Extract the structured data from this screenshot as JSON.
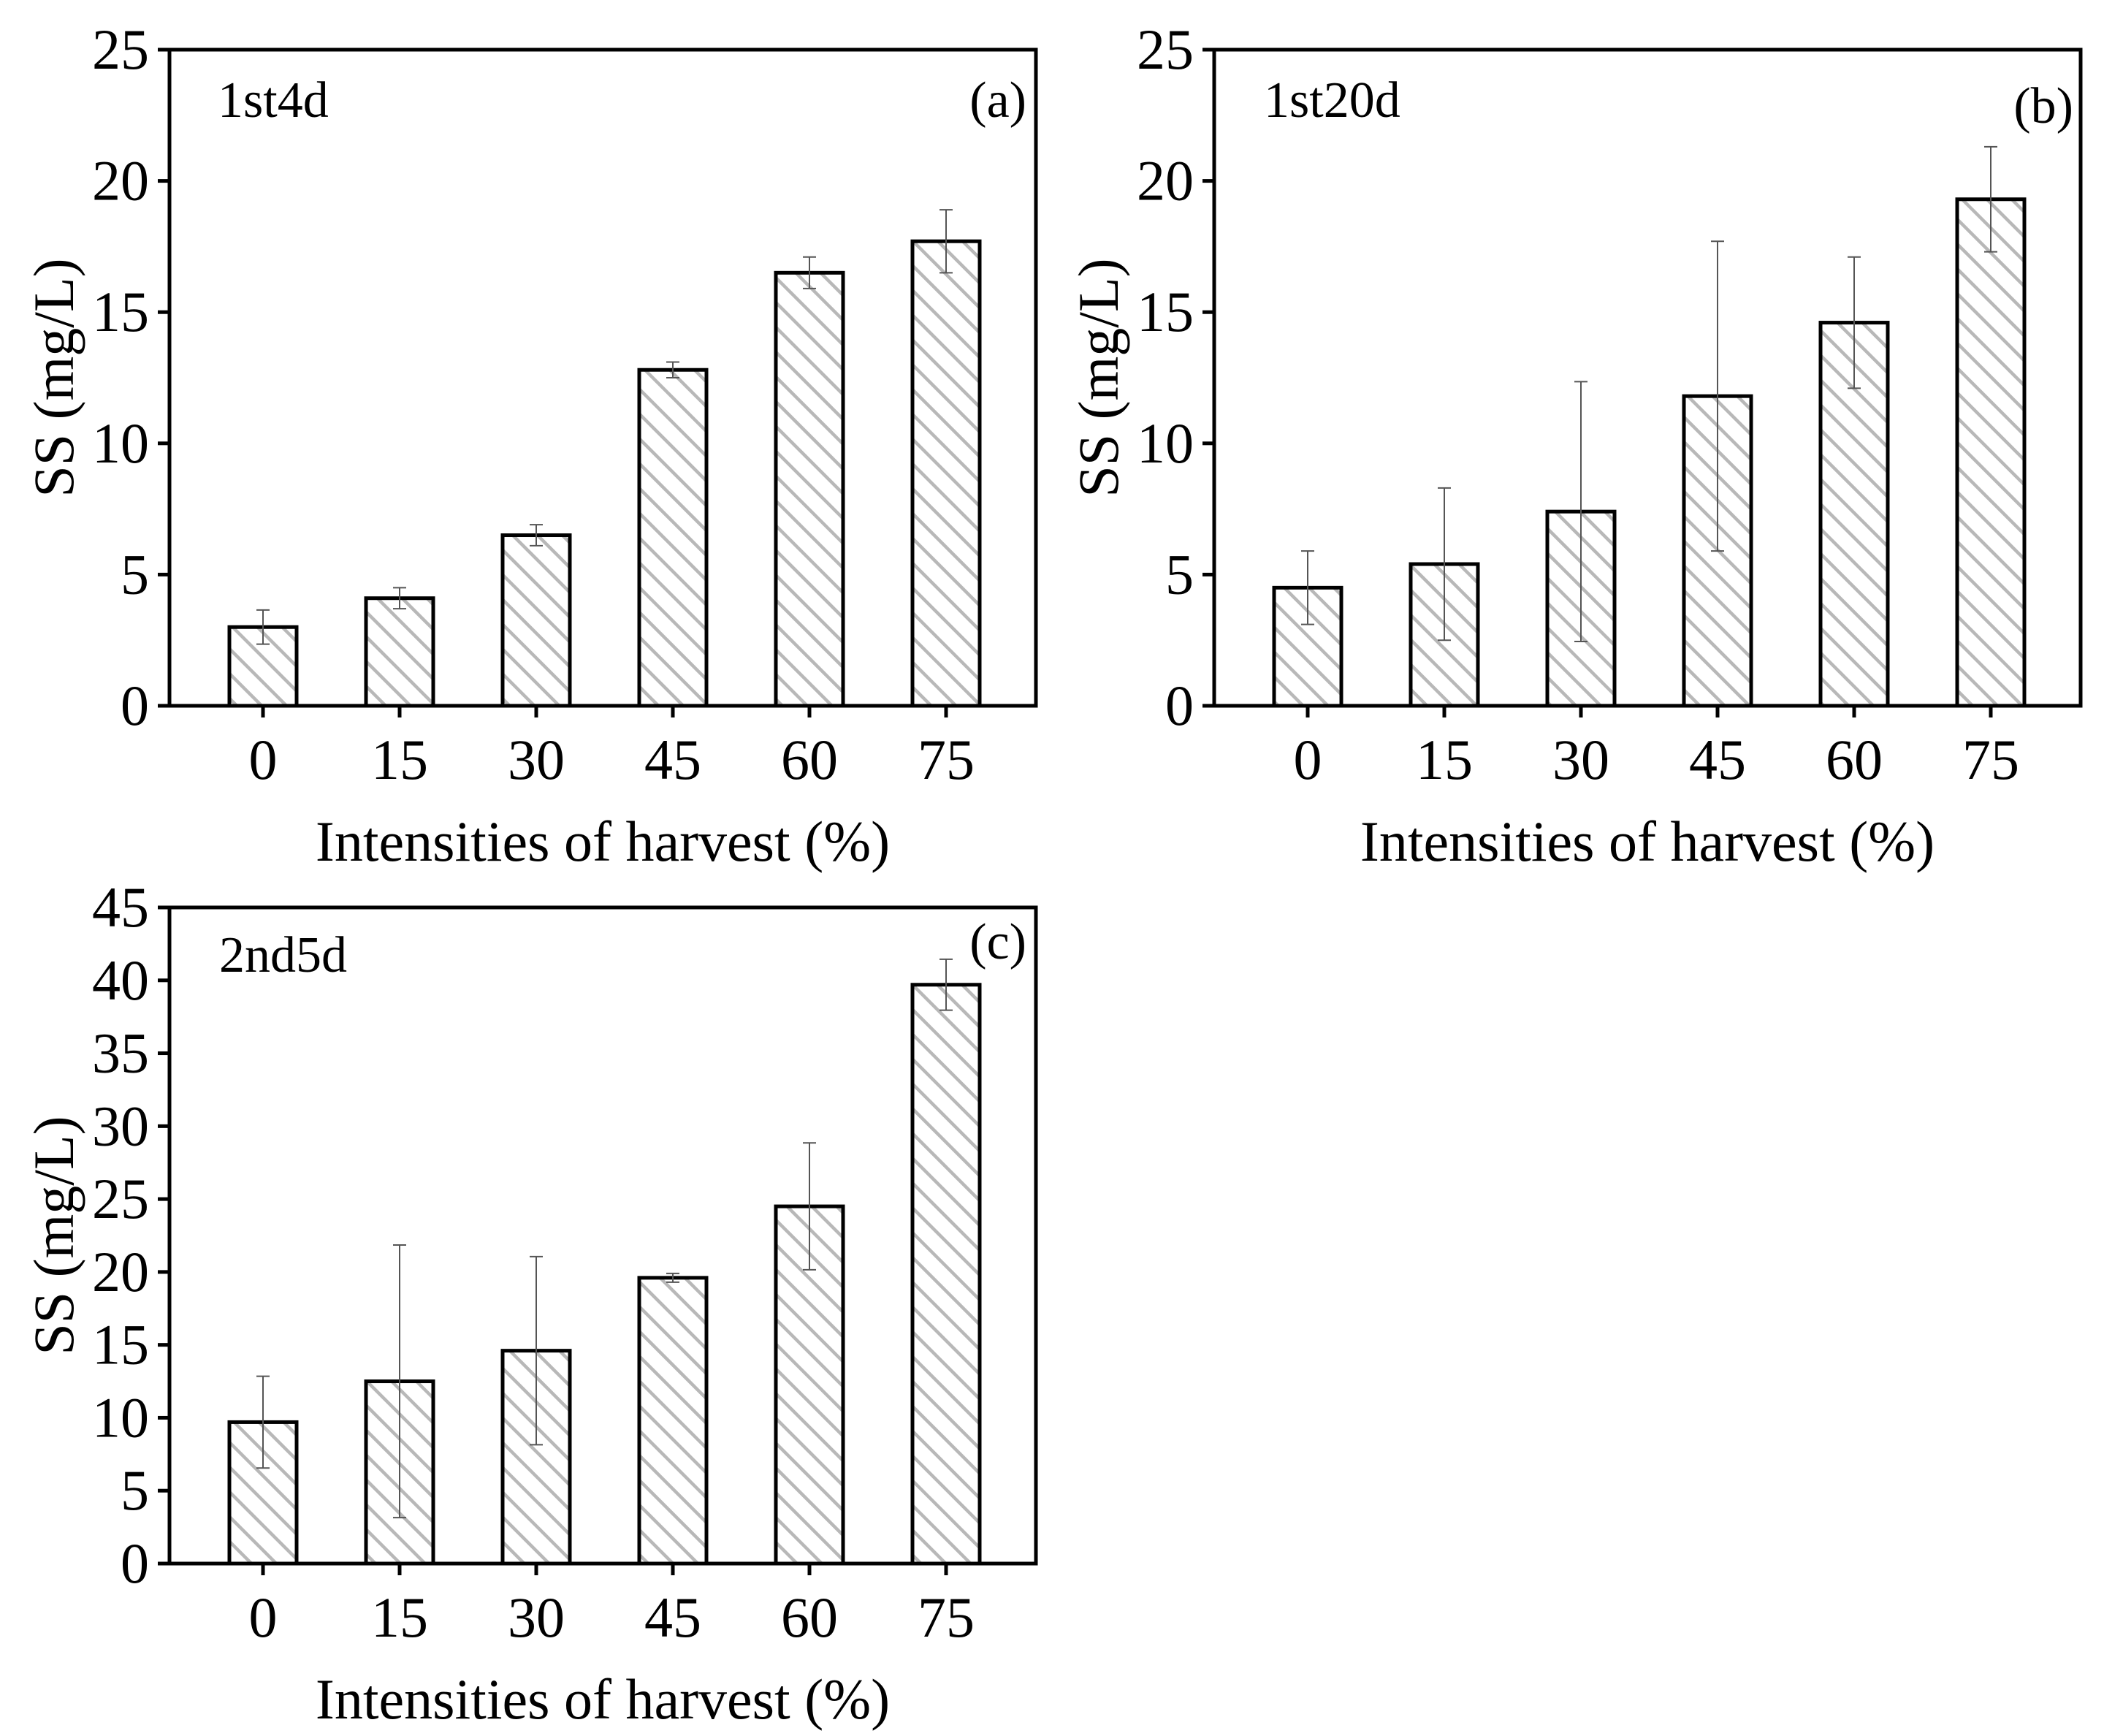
{
  "chart_data": [
    {
      "id": "a",
      "type": "bar",
      "panel_label": "(a)",
      "tag": "1st4d",
      "xlabel": "Intensities of harvest (%)",
      "ylabel": "SS (mg/L)",
      "categories": [
        "0",
        "15",
        "30",
        "45",
        "60",
        "75"
      ],
      "values": [
        3.0,
        4.1,
        6.5,
        12.8,
        16.5,
        17.7
      ],
      "errors": [
        0.65,
        0.4,
        0.4,
        0.3,
        0.6,
        1.2
      ],
      "ylim": [
        0,
        25
      ],
      "yticks": [
        0,
        5,
        10,
        15,
        20,
        25
      ],
      "hatch": "diagonal",
      "error_bars": true
    },
    {
      "id": "b",
      "type": "bar",
      "panel_label": "(b)",
      "tag": "1st20d",
      "xlabel": "Intensities of harvest (%)",
      "ylabel": "SS (mg/L)",
      "categories": [
        "0",
        "15",
        "30",
        "45",
        "60",
        "75"
      ],
      "values": [
        4.5,
        5.4,
        7.4,
        11.8,
        14.6,
        19.3
      ],
      "errors": [
        1.4,
        2.9,
        4.95,
        5.9,
        2.5,
        2.0
      ],
      "ylim": [
        0,
        25
      ],
      "yticks": [
        0,
        5,
        10,
        15,
        20,
        25
      ],
      "hatch": "diagonal",
      "error_bars": true
    },
    {
      "id": "c",
      "type": "bar",
      "panel_label": "(c)",
      "tag": "2nd5d",
      "xlabel": "Intensities of harvest (%)",
      "ylabel": "SS (mg/L)",
      "categories": [
        "0",
        "15",
        "30",
        "45",
        "60",
        "75"
      ],
      "values": [
        9.7,
        12.5,
        14.6,
        19.6,
        24.5,
        39.7
      ],
      "errors": [
        3.15,
        9.35,
        6.45,
        0.3,
        4.35,
        1.75
      ],
      "ylim": [
        0,
        45
      ],
      "yticks": [
        0,
        5,
        10,
        15,
        20,
        25,
        30,
        35,
        40,
        45
      ],
      "hatch": "diagonal",
      "error_bars": true
    }
  ]
}
